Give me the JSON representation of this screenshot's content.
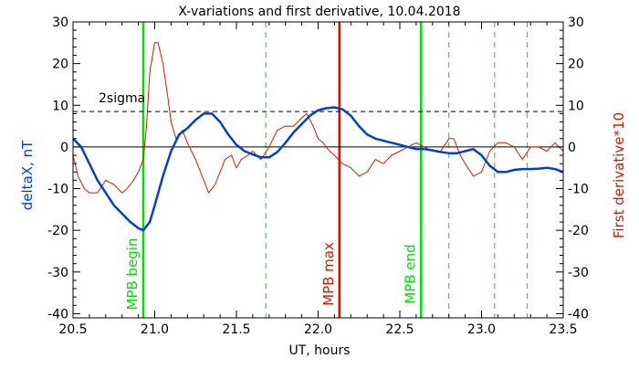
{
  "chart_data": {
    "type": "line",
    "title": "X-variations and first derivative, 10.04.2018",
    "xlabel": "UT, hours",
    "ylabel_left": "deltaX, nT",
    "ylabel_right": "First derivative*10",
    "xlim": [
      20.5,
      23.5
    ],
    "ylim": [
      -41,
      30
    ],
    "xticks": [
      "20.5",
      "21.0",
      "21.5",
      "22.0",
      "22.5",
      "23.0",
      "23.5"
    ],
    "yticks": [
      "30",
      "20",
      "10",
      "0",
      "-10",
      "-20",
      "-30",
      "-40"
    ],
    "grid": false,
    "colors": {
      "deltaX": "#0040d0",
      "derivative": "#c81e00",
      "mpb_boundary": "#00e000",
      "mpb_max": "#c81e00",
      "reference": "#000000"
    },
    "threshold": {
      "label": "2sigma",
      "value": 8.5
    },
    "zero_line": 0,
    "markers": [
      {
        "label": "MPB begin",
        "x": 20.93,
        "kind": "boundary"
      },
      {
        "label": "MPB max",
        "x": 22.13,
        "kind": "max"
      },
      {
        "label": "MPB end",
        "x": 22.63,
        "kind": "boundary"
      }
    ],
    "dashed_markers": [
      21.68,
      22.8,
      23.08,
      23.28
    ],
    "series": [
      {
        "key": "deltaX",
        "x": [
          20.5,
          20.55,
          20.6,
          20.65,
          20.7,
          20.75,
          20.8,
          20.85,
          20.9,
          20.93,
          20.97,
          21.0,
          21.05,
          21.1,
          21.15,
          21.2,
          21.25,
          21.3,
          21.35,
          21.4,
          21.45,
          21.5,
          21.55,
          21.6,
          21.65,
          21.7,
          21.75,
          21.8,
          21.85,
          21.9,
          21.95,
          22.0,
          22.05,
          22.1,
          22.15,
          22.2,
          22.25,
          22.3,
          22.35,
          22.4,
          22.45,
          22.5,
          22.55,
          22.6,
          22.65,
          22.7,
          22.75,
          22.8,
          22.85,
          22.9,
          22.95,
          23.0,
          23.05,
          23.1,
          23.15,
          23.2,
          23.25,
          23.3,
          23.35,
          23.4,
          23.45,
          23.5
        ],
        "values": [
          2,
          0,
          -4,
          -8,
          -11,
          -14,
          -16,
          -18,
          -19.5,
          -20,
          -18,
          -14,
          -7,
          -1,
          3,
          4.5,
          6.5,
          8,
          8,
          6,
          3,
          0.5,
          -1,
          -1.8,
          -2.5,
          -2.5,
          -1.2,
          1,
          3.5,
          5.5,
          7.5,
          8.8,
          9.3,
          9.5,
          9,
          7.5,
          5,
          3,
          2,
          1.5,
          1,
          0.5,
          0,
          -0.5,
          -0.5,
          -0.8,
          -1.2,
          -1.5,
          -1.5,
          -1,
          -0.5,
          -2,
          -4.5,
          -6,
          -6,
          -5.5,
          -5.3,
          -5.3,
          -5.2,
          -5,
          -5.3,
          -6
        ]
      },
      {
        "key": "derivative",
        "x": [
          20.5,
          20.53,
          20.57,
          20.6,
          20.65,
          20.7,
          20.75,
          20.8,
          20.83,
          20.87,
          20.9,
          20.93,
          20.95,
          20.97,
          21.0,
          21.02,
          21.05,
          21.08,
          21.1,
          21.13,
          21.17,
          21.2,
          21.25,
          21.3,
          21.33,
          21.37,
          21.4,
          21.43,
          21.47,
          21.5,
          21.53,
          21.57,
          21.6,
          21.65,
          21.7,
          21.75,
          21.8,
          21.85,
          21.9,
          21.93,
          21.97,
          22.0,
          22.03,
          22.07,
          22.1,
          22.15,
          22.2,
          22.25,
          22.3,
          22.35,
          22.4,
          22.45,
          22.5,
          22.55,
          22.6,
          22.65,
          22.7,
          22.75,
          22.8,
          22.83,
          22.87,
          22.9,
          22.95,
          23.0,
          23.05,
          23.1,
          23.15,
          23.2,
          23.25,
          23.3,
          23.35,
          23.4,
          23.45,
          23.5
        ],
        "values": [
          -2,
          -7,
          -10,
          -11,
          -11,
          -8,
          -9,
          -11,
          -10,
          -8,
          -6,
          -3,
          5,
          18,
          25,
          25,
          20,
          12,
          6,
          2,
          4,
          1,
          -3,
          -8,
          -11,
          -9,
          -6,
          -3,
          -2,
          -5,
          -3,
          -2,
          -1,
          -3,
          0,
          4,
          5,
          5,
          7,
          8,
          5,
          2,
          1,
          -1,
          -2,
          -4,
          -5,
          -7,
          -6,
          -3,
          -4,
          -2,
          -1,
          0,
          1,
          0,
          -1,
          -1,
          2,
          2,
          -2,
          -4,
          -7,
          -6,
          -1,
          1,
          1,
          0,
          -3,
          0,
          0,
          -1,
          1,
          -1
        ]
      }
    ]
  }
}
